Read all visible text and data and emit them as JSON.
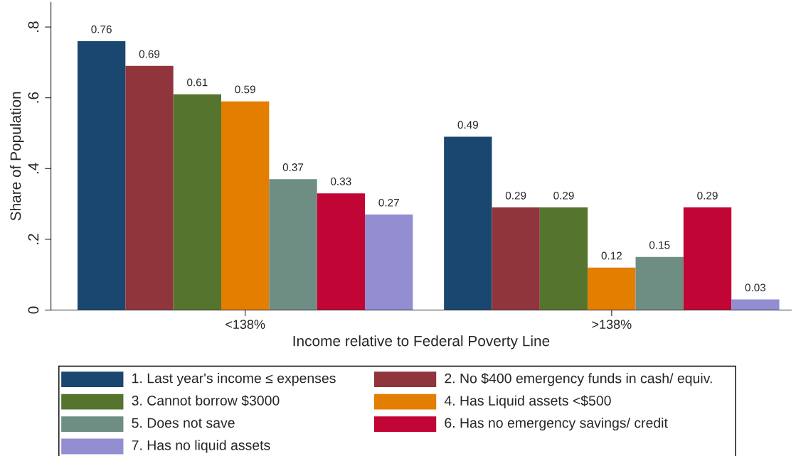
{
  "chart_data": {
    "type": "bar",
    "xlabel": "Income relative to Federal Poverty Line",
    "ylabel": "Share of Population",
    "categories": [
      "<138%",
      ">138%"
    ],
    "series": [
      {
        "name": "1. Last year's income ≤ expenses",
        "color": "#1a476f",
        "values": [
          0.76,
          0.49
        ]
      },
      {
        "name": "2. No $400 emergency funds in cash/ equiv.",
        "color": "#90353b",
        "values": [
          0.69,
          0.29
        ]
      },
      {
        "name": "3. Cannot borrow $3000",
        "color": "#55752f",
        "values": [
          0.61,
          0.29
        ]
      },
      {
        "name": "4. Has Liquid assets <$500",
        "color": "#e37e00",
        "values": [
          0.59,
          0.12
        ]
      },
      {
        "name": "5. Does not save",
        "color": "#6e8e84",
        "values": [
          0.37,
          0.15
        ]
      },
      {
        "name": "6. Has no emergency savings/ credit",
        "color": "#c10534",
        "values": [
          0.33,
          0.29
        ]
      },
      {
        "name": "7. Has no liquid assets",
        "color": "#938dd2",
        "values": [
          0.27,
          0.03
        ]
      }
    ],
    "ylim": [
      0,
      0.87
    ],
    "yticks": [
      0,
      {
        "value": 0.2,
        "label": ".2"
      },
      {
        "value": 0.4,
        "label": ".4"
      },
      {
        "value": 0.6,
        "label": ".6"
      },
      {
        "value": 0.8,
        "label": ".8"
      }
    ],
    "data_labels": true,
    "grid": false,
    "legend": "bottom"
  }
}
